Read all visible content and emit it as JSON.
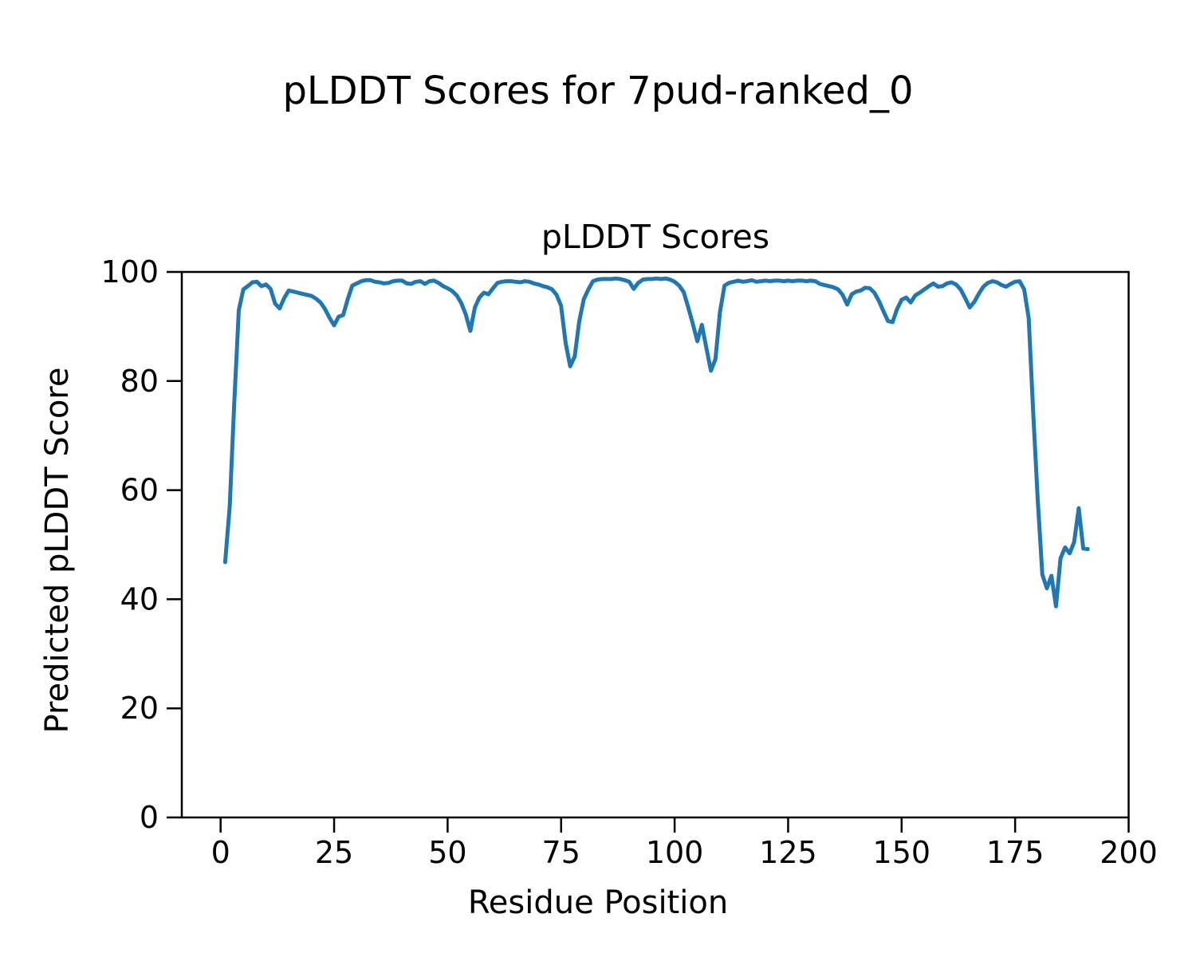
{
  "figure": {
    "suptitle": "pLDDT Scores for 7pud-ranked_0"
  },
  "chart_data": {
    "type": "line",
    "title": "pLDDT Scores",
    "xlabel": "Residue Position",
    "ylabel": "Predicted pLDDT Score",
    "xlim": [
      -8.55,
      200.0
    ],
    "ylim": [
      0,
      100
    ],
    "x_ticks": [
      0,
      25,
      50,
      75,
      100,
      125,
      150,
      175,
      200
    ],
    "y_ticks": [
      0,
      20,
      40,
      60,
      80,
      100
    ],
    "grid": false,
    "legend": false,
    "background": "#ffffff",
    "axis_color": "#000000",
    "series": [
      {
        "name": "pLDDT",
        "color": "#1f77b4",
        "line_width": 5,
        "x_start": 1,
        "x_step": 1,
        "values": [
          46.8,
          57.0,
          76.0,
          93.0,
          96.8,
          97.4,
          98.1,
          98.2,
          97.4,
          97.7,
          96.9,
          94.2,
          93.3,
          95.2,
          96.6,
          96.4,
          96.2,
          96.0,
          95.8,
          95.6,
          95.1,
          94.4,
          93.2,
          91.6,
          90.2,
          91.8,
          92.1,
          95.0,
          97.5,
          97.9,
          98.3,
          98.5,
          98.5,
          98.2,
          98.1,
          97.9,
          98.0,
          98.3,
          98.4,
          98.4,
          97.9,
          97.8,
          98.2,
          98.3,
          97.8,
          98.3,
          98.4,
          98.0,
          97.4,
          97.0,
          96.5,
          95.7,
          94.3,
          92.2,
          89.2,
          93.5,
          95.3,
          96.2,
          95.9,
          97.0,
          98.0,
          98.2,
          98.3,
          98.3,
          98.2,
          98.1,
          98.3,
          98.2,
          97.9,
          97.7,
          97.4,
          97.2,
          96.8,
          95.8,
          93.8,
          87.0,
          82.7,
          84.5,
          91.0,
          95.0,
          96.8,
          98.3,
          98.6,
          98.7,
          98.7,
          98.7,
          98.8,
          98.7,
          98.5,
          98.2,
          96.9,
          98.0,
          98.6,
          98.7,
          98.7,
          98.8,
          98.7,
          98.8,
          98.6,
          98.2,
          97.5,
          96.3,
          93.5,
          90.5,
          87.3,
          90.3,
          86.0,
          81.9,
          84.0,
          92.7,
          97.5,
          98.0,
          98.2,
          98.4,
          98.2,
          98.3,
          98.5,
          98.2,
          98.3,
          98.4,
          98.3,
          98.4,
          98.4,
          98.3,
          98.4,
          98.3,
          98.4,
          98.4,
          98.3,
          98.4,
          98.3,
          97.8,
          97.6,
          97.4,
          97.2,
          96.8,
          95.8,
          94.0,
          95.9,
          96.4,
          96.6,
          97.1,
          97.0,
          96.2,
          94.7,
          92.8,
          91.0,
          90.8,
          93.2,
          94.9,
          95.3,
          94.4,
          95.7,
          96.2,
          96.8,
          97.4,
          97.9,
          97.3,
          97.4,
          97.9,
          98.1,
          97.7,
          96.8,
          95.2,
          93.5,
          94.5,
          96.0,
          97.3,
          98.0,
          98.3,
          98.1,
          97.6,
          97.3,
          97.8,
          98.2,
          98.3,
          96.8,
          91.5,
          74.0,
          58.0,
          44.5,
          42.0,
          44.3,
          38.7,
          47.5,
          49.5,
          48.4,
          50.5,
          56.7,
          49.3,
          49.2
        ]
      }
    ]
  }
}
